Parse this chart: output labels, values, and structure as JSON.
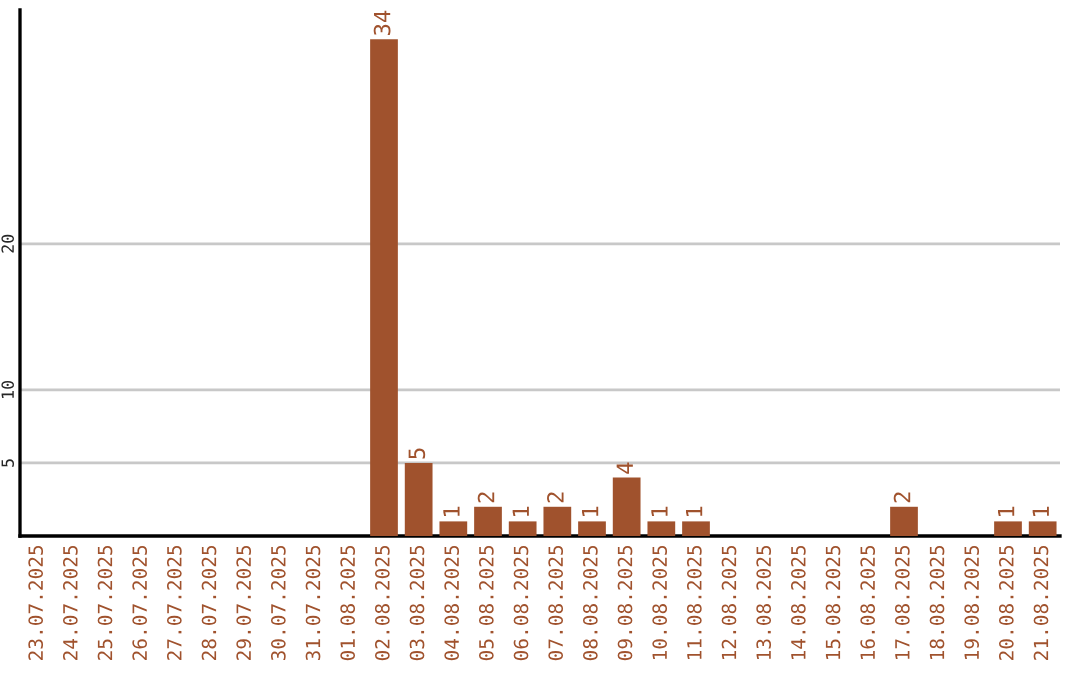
{
  "chart_data": {
    "type": "bar",
    "categories": [
      "23.07.2025",
      "24.07.2025",
      "25.07.2025",
      "26.07.2025",
      "27.07.2025",
      "28.07.2025",
      "29.07.2025",
      "30.07.2025",
      "31.07.2025",
      "01.08.2025",
      "02.08.2025",
      "03.08.2025",
      "04.08.2025",
      "05.08.2025",
      "06.08.2025",
      "07.08.2025",
      "08.08.2025",
      "09.08.2025",
      "10.08.2025",
      "11.08.2025",
      "12.08.2025",
      "13.08.2025",
      "14.08.2025",
      "15.08.2025",
      "16.08.2025",
      "17.08.2025",
      "18.08.2025",
      "19.08.2025",
      "20.08.2025",
      "21.08.2025"
    ],
    "values": [
      0,
      0,
      0,
      0,
      0,
      0,
      0,
      0,
      0,
      0,
      34,
      5,
      1,
      2,
      1,
      2,
      1,
      4,
      1,
      1,
      0,
      0,
      0,
      0,
      0,
      2,
      0,
      0,
      1,
      1
    ],
    "value_labels": [
      null,
      null,
      null,
      null,
      null,
      null,
      null,
      null,
      null,
      null,
      "34",
      "5",
      "1",
      "2",
      "1",
      "2",
      "1",
      "4",
      "1",
      "1",
      null,
      null,
      null,
      null,
      null,
      "2",
      null,
      null,
      "1",
      "1"
    ],
    "color": "#a0522d",
    "ylim": [
      0,
      36
    ],
    "yticks": [
      5,
      10,
      20
    ],
    "grid": "y",
    "legend": false
  }
}
